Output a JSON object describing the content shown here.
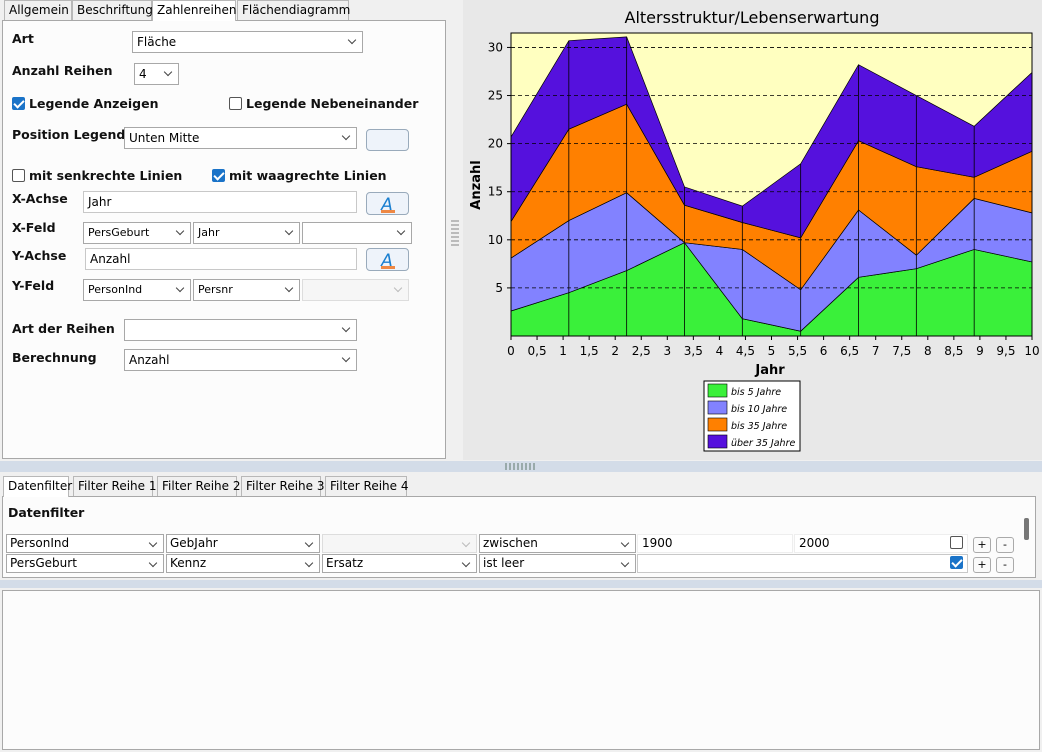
{
  "tabs": [
    "Allgemein",
    "Beschriftung",
    "Zahlenreihen",
    "Flächendiagramm"
  ],
  "form": {
    "art": {
      "label": "Art",
      "value": "Fläche"
    },
    "anzahl_reihen": {
      "label": "Anzahl Reihen",
      "value": "4"
    },
    "legende_anzeigen": {
      "label": "Legende Anzeigen",
      "checked": true
    },
    "legende_nebeneinander": {
      "label": "Legende Nebeneinander",
      "checked": false
    },
    "position_legende": {
      "label": "Position Legende",
      "value": "Unten Mitte"
    },
    "senkrechte_linien": {
      "label": "mit senkrechte Linien",
      "checked": false
    },
    "waagrechte_linien": {
      "label": "mit waagrechte Linien",
      "checked": true
    },
    "x_achse": {
      "label": "X-Achse",
      "value": "Jahr"
    },
    "x_feld": {
      "label": "X-Feld",
      "values": [
        "PersGeburt",
        "Jahr"
      ]
    },
    "y_achse": {
      "label": "Y-Achse",
      "value": "Anzahl"
    },
    "y_feld": {
      "label": "Y-Feld",
      "values": [
        "PersonInd",
        "Persnr"
      ]
    },
    "art_der_reihen": {
      "label": "Art der Reihen"
    },
    "berechnung": {
      "label": "Berechnung",
      "value": "Anzahl"
    }
  },
  "chart_data": {
    "type": "area",
    "stacked": true,
    "title": "Altersstruktur/Lebenserwartung",
    "x_label": "Jahr",
    "y_label": "Anzahl",
    "x": [
      0,
      1.11,
      2.22,
      3.33,
      4.44,
      5.56,
      6.67,
      7.78,
      8.89,
      10
    ],
    "series": [
      {
        "name": "bis 5 Jahre",
        "color": "#3af03a",
        "values": [
          2.6,
          4.5,
          6.8,
          9.7,
          1.8,
          0.5,
          6.1,
          7.0,
          9.0,
          7.7
        ]
      },
      {
        "name": "bis 10 Jahre",
        "color": "#8282ff",
        "values": [
          5.5,
          7.5,
          8.1,
          0,
          7.2,
          4.3,
          7.0,
          1.4,
          5.3,
          5.1
        ]
      },
      {
        "name": "bis 35 Jahre",
        "color": "#ff8000",
        "values": [
          3.8,
          9.5,
          9.2,
          3.9,
          2.8,
          5.4,
          7.2,
          9.2,
          2.2,
          6.4
        ]
      },
      {
        "name": "über 35 Jahre",
        "color": "#5511dd",
        "values": [
          8.8,
          9.2,
          7.0,
          1.9,
          1.7,
          7.7,
          7.9,
          7.4,
          5.3,
          8.2
        ]
      }
    ],
    "xlim": [
      0,
      10
    ],
    "xticks": [
      0,
      {
        "value": 0.5,
        "label": "0,5"
      },
      1,
      {
        "value": 1.5,
        "label": "1,5"
      },
      2,
      {
        "value": 2.5,
        "label": "2,5"
      },
      3,
      {
        "value": 3.5,
        "label": "3,5"
      },
      4,
      {
        "value": 4.5,
        "label": "4,5"
      },
      5,
      {
        "value": 5.5,
        "label": "5,5"
      },
      6,
      {
        "value": 6.5,
        "label": "6,5"
      },
      7,
      {
        "value": 7.5,
        "label": "7,5"
      },
      8,
      {
        "value": 8.5,
        "label": "8,5"
      },
      9,
      {
        "value": 9.5,
        "label": "9,5"
      },
      10
    ],
    "ylim": [
      0,
      31.5
    ],
    "yticks": [
      5,
      10,
      15,
      20,
      25,
      30
    ],
    "grid": true,
    "plot_color": "#ffffc0",
    "legend": "bottom"
  },
  "filter": {
    "tabs": [
      "Datenfilter",
      "Filter Reihe 1",
      "Filter Reihe 2",
      "Filter Reihe 3",
      "Filter Reihe 4"
    ],
    "title": "Datenfilter",
    "rows": [
      {
        "feld": "PersonInd",
        "spalte": "GebJahr",
        "operator": "zwischen",
        "von": "1900",
        "bis": "2000",
        "checked": false
      },
      {
        "feld": "PersGeburt",
        "spalte": "Kennz",
        "ersatz": "Ersatz",
        "operator": "ist leer",
        "checked": true
      }
    ],
    "add": "+",
    "remove": "-"
  }
}
